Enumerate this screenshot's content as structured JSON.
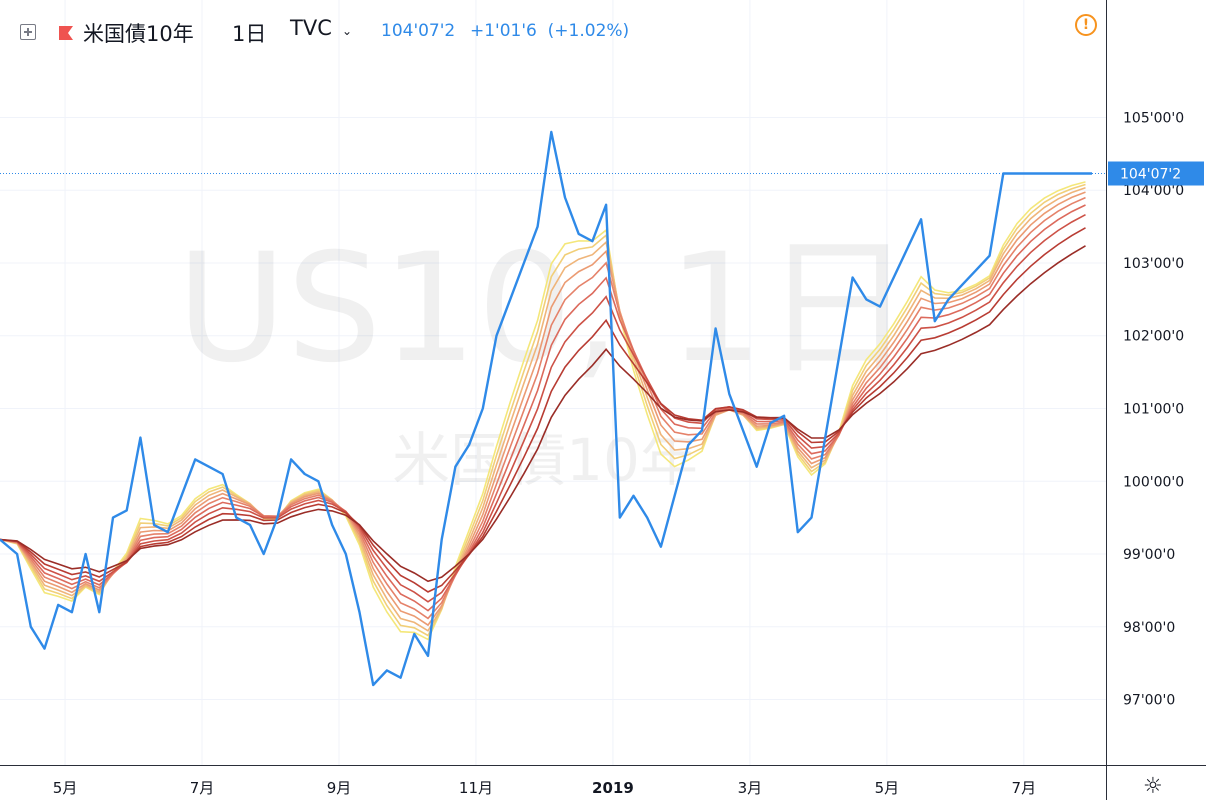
{
  "header": {
    "symbol": "米国債10年",
    "timeframe": "1日",
    "exchange": "TVC",
    "price": "104'07'2",
    "change": "+1'01'6",
    "change_pct": "(+1.02%)",
    "price_color": "#2f8ae8"
  },
  "watermark": {
    "line1": "US10, 1日",
    "line2": "米国債10年"
  },
  "last_price_label": "104'07'2",
  "icons": {
    "add": "plus-square-icon",
    "flag": "flag-icon",
    "dropdown": "chevron-down-icon",
    "warning": "warning-icon",
    "settings": "gear-icon"
  },
  "chart_data": {
    "type": "line",
    "price_ticks": [
      "97'00'0",
      "98'00'0",
      "99'00'0",
      "100'00'0",
      "101'00'0",
      "102'00'0",
      "103'00'0",
      "104'00'0",
      "105'00'0"
    ],
    "price_values": [
      97,
      98,
      99,
      100,
      101,
      102,
      103,
      104,
      105
    ],
    "ylim": [
      96.1,
      105.9
    ],
    "time_ticks": [
      "5月",
      "7月",
      "9月",
      "11月",
      "2019",
      "3月",
      "5月",
      "7月"
    ],
    "time_positions": [
      1,
      3,
      5,
      7,
      9,
      11,
      13,
      15
    ],
    "xlim": [
      0.05,
      16.2
    ],
    "last_price": 104.23,
    "series": [
      {
        "color": "#2f8ae8",
        "x": [
          0.05,
          0.3,
          0.5,
          0.7,
          0.9,
          1.1,
          1.3,
          1.5,
          1.7,
          1.9,
          2.1,
          2.3,
          2.5,
          2.7,
          2.9,
          3.1,
          3.3,
          3.5,
          3.7,
          3.9,
          4.1,
          4.3,
          4.5,
          4.7,
          4.9,
          5.1,
          5.3,
          5.5,
          5.7,
          5.9,
          6.1,
          6.3,
          6.5,
          6.7,
          6.9,
          7.1,
          7.3,
          7.5,
          7.7,
          7.9,
          8.1,
          8.3,
          8.5,
          8.7,
          8.9,
          9.1,
          9.3,
          9.5,
          9.7,
          9.9,
          10.1,
          10.3,
          10.5,
          10.7,
          10.9,
          11.1,
          11.3,
          11.5,
          11.7,
          11.9,
          12.1,
          12.3,
          12.5,
          12.7,
          12.9,
          13.1,
          13.3,
          13.5,
          13.7,
          13.9,
          14.1,
          14.3,
          14.5,
          14.7,
          14.9,
          15.1,
          15.3,
          15.5,
          15.7,
          15.9,
          16.2
        ],
        "y": [
          99.2,
          99.0,
          98.0,
          97.7,
          98.3,
          98.2,
          99.0,
          98.2,
          99.5,
          99.6,
          100.6,
          99.4,
          99.3,
          99.8,
          100.3,
          100.2,
          100.1,
          99.5,
          99.4,
          99.0,
          99.5,
          100.3,
          100.1,
          100.0,
          99.4,
          99.0,
          98.2,
          97.2,
          97.4,
          97.3,
          97.9,
          97.6,
          99.2,
          100.2,
          100.5,
          101.0,
          102.0,
          102.5,
          103.0,
          103.5,
          104.8,
          103.9,
          103.4,
          103.3,
          103.8,
          99.5,
          99.8,
          99.5,
          99.1,
          99.8,
          100.5,
          100.7,
          102.1,
          101.2,
          100.7,
          100.2,
          100.8,
          100.9,
          99.3,
          99.5,
          100.6,
          101.7,
          102.8,
          102.5,
          102.4,
          102.8,
          103.2,
          103.6,
          102.2,
          102.5,
          102.7,
          102.9,
          103.1,
          104.23,
          104.23,
          104.23,
          104.23,
          104.23,
          104.23,
          104.23,
          104.23
        ]
      }
    ],
    "ribbon_colors": [
      "#f4e77a",
      "#f1cf78",
      "#efb57a",
      "#eb9b73",
      "#e5826a",
      "#dc6a5c",
      "#cd5247",
      "#b83c33",
      "#9a2d27"
    ]
  }
}
